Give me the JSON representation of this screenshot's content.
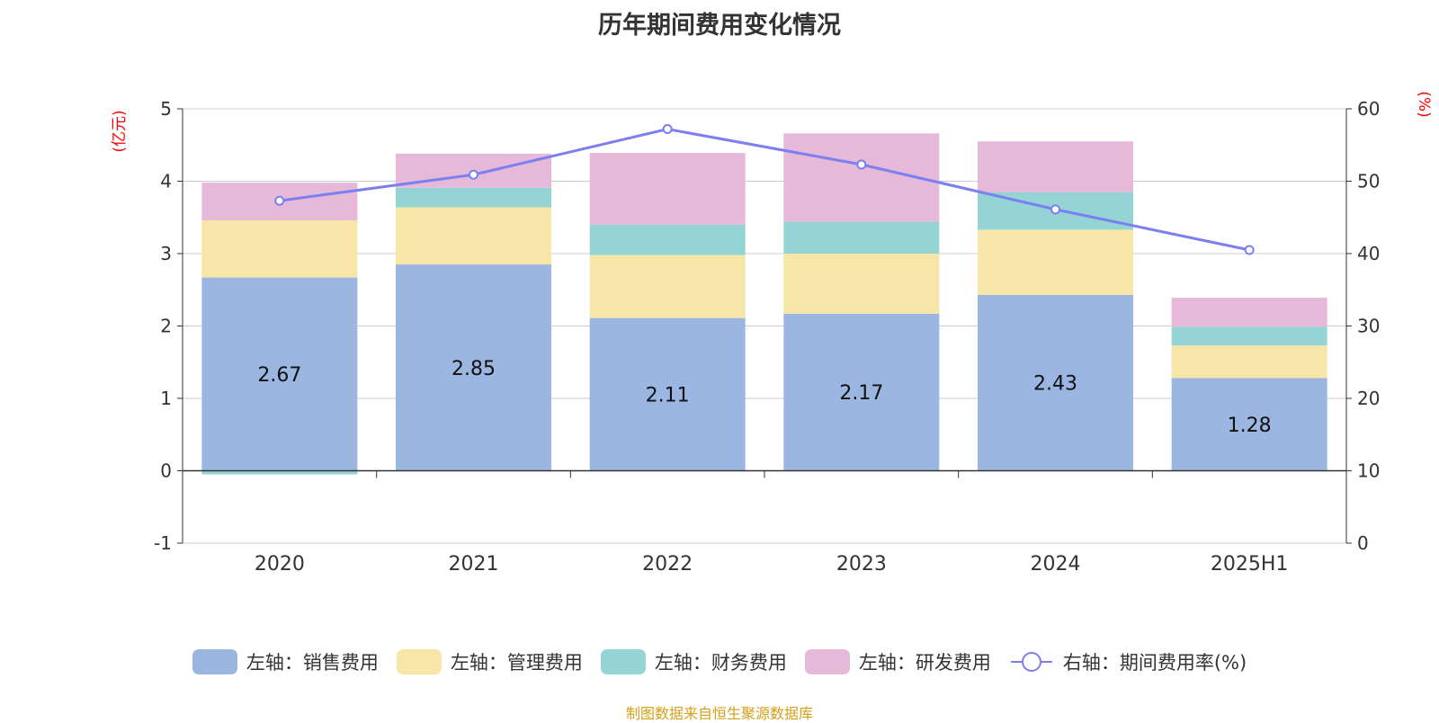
{
  "title": "历年期间费用变化情况",
  "source": "制图数据来自恒生聚源数据库",
  "left_axis_unit": "(亿元)",
  "right_axis_unit": "(%)",
  "colors": {
    "sales": "#9bb7e1",
    "admin": "#f8e6a8",
    "finance": "#95d4d4",
    "rd": "#e6b9d9",
    "rate_line": "#7b7ff0",
    "unit_text": "#ff0000",
    "source_text": "#d4a017"
  },
  "legend": [
    {
      "label": "左轴：销售费用",
      "color": "#9bb7e1",
      "kind": "bar"
    },
    {
      "label": "左轴：管理费用",
      "color": "#f8e6a8",
      "kind": "bar"
    },
    {
      "label": "左轴：财务费用",
      "color": "#95d4d4",
      "kind": "bar"
    },
    {
      "label": "左轴：研发费用",
      "color": "#e6b9d9",
      "kind": "bar"
    },
    {
      "label": "右轴：期间费用率(%)",
      "color": "#7b7ff0",
      "kind": "line"
    }
  ],
  "chart_data": {
    "type": "bar",
    "stacked": true,
    "categories": [
      "2020",
      "2021",
      "2022",
      "2023",
      "2024",
      "2025H1"
    ],
    "series": [
      {
        "name": "左轴：销售费用",
        "axis": "left",
        "values": [
          2.67,
          2.85,
          2.11,
          2.17,
          2.43,
          1.28
        ],
        "data_labels": [
          "2.67",
          "2.85",
          "2.11",
          "2.17",
          "2.43",
          "1.28"
        ]
      },
      {
        "name": "左轴：管理费用",
        "axis": "left",
        "values": [
          0.79,
          0.79,
          0.87,
          0.83,
          0.9,
          0.45
        ]
      },
      {
        "name": "左轴：财务费用",
        "axis": "left",
        "values": [
          -0.05,
          0.27,
          0.42,
          0.44,
          0.52,
          0.26
        ]
      },
      {
        "name": "左轴：研发费用",
        "axis": "left",
        "values": [
          0.52,
          0.47,
          0.99,
          1.22,
          0.7,
          0.4
        ]
      },
      {
        "name": "右轴：期间费用率(%)",
        "axis": "right",
        "type": "line",
        "values": [
          47.3,
          50.9,
          57.2,
          52.3,
          46.1,
          40.5
        ]
      }
    ],
    "left_axis": {
      "min": -1,
      "max": 5,
      "ticks": [
        -1,
        0,
        1,
        2,
        3,
        4,
        5
      ]
    },
    "right_axis": {
      "min": 0,
      "max": 60,
      "ticks": [
        0,
        10,
        20,
        30,
        40,
        50,
        60
      ]
    },
    "grid": true,
    "legend_position": "bottom"
  }
}
